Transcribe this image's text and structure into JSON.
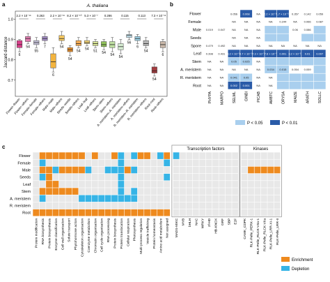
{
  "panel_a": {
    "letter": "a",
    "title": "A. thaliana",
    "ylabel": "Jaccard distance",
    "yticks": [
      "1.0",
      "0.9",
      "0.8",
      "0.7"
    ],
    "xlabels": [
      "Flower–flower",
      "Flower–others",
      "Female–female",
      "Female–others",
      "Male–male",
      "Male–others",
      "Seeds–seeds",
      "Seeds–others",
      "Leaf–leaf",
      "Leaf–others",
      "Stem–stem",
      "Stem–others",
      "A. meristem–A. meristem",
      "A. meristem–others",
      "R. meristem–R. meristem",
      "R. meristem–others",
      "Root–root",
      "Root–others"
    ],
    "pvalues": [
      "2.2 × 10⁻¹⁶",
      "0.263",
      "2.2 × 10⁻¹⁶",
      "8.2 × 10⁻¹⁰",
      "5.3 × 10⁻⁷",
      "0.286",
      "0.115",
      "0.113",
      "7.3 × 10⁻¹⁵"
    ],
    "ns": [
      "6",
      "54",
      "55",
      "7",
      "6",
      "54",
      "54",
      "54",
      "54",
      "51",
      "54",
      "54",
      "54",
      "56",
      "6",
      "54",
      "54",
      "6"
    ]
  },
  "chart_data": {
    "type": "box",
    "title": "A. thaliana",
    "ylabel": "Jaccard distance",
    "ylim": [
      0.62,
      1.04
    ],
    "categories": [
      "Flower–flower",
      "Flower–others",
      "Female–female",
      "Female–others",
      "Male–male",
      "Male–others",
      "Seeds–seeds",
      "Seeds–others",
      "Leaf–leaf",
      "Leaf–others",
      "Stem–stem",
      "Stem–others",
      "A. meristem–A. meristem",
      "A. meristem–others",
      "R. meristem–R. meristem",
      "R. meristem–others",
      "Root–root",
      "Root–others"
    ],
    "boxes": [
      {
        "min": 0.84,
        "q1": 0.86,
        "median": 0.875,
        "q3": 0.895,
        "max": 0.9,
        "color": "#d9418b"
      },
      {
        "min": 0.88,
        "q1": 0.89,
        "median": 0.905,
        "q3": 0.915,
        "max": 0.93,
        "color": "#e57fb4"
      },
      {
        "min": 0.86,
        "q1": 0.875,
        "median": 0.885,
        "q3": 0.895,
        "max": 0.91,
        "color": "#c7c3db"
      },
      {
        "min": 0.88,
        "q1": 0.895,
        "median": 0.905,
        "q3": 0.915,
        "max": 0.93,
        "color": "#a48dc6"
      },
      {
        "min": 0.74,
        "q1": 0.76,
        "median": 0.79,
        "q3": 0.83,
        "max": 0.86,
        "color": "#f3b43f"
      },
      {
        "min": 0.88,
        "q1": 0.895,
        "median": 0.905,
        "q3": 0.92,
        "max": 0.94,
        "color": "#f7c95f"
      },
      {
        "min": 0.82,
        "q1": 0.84,
        "median": 0.85,
        "q3": 0.86,
        "max": 0.87,
        "color": "#e58d2a"
      },
      {
        "min": 0.86,
        "q1": 0.87,
        "median": 0.88,
        "q3": 0.895,
        "max": 0.91,
        "color": "#f3ab55"
      },
      {
        "min": 0.87,
        "q1": 0.88,
        "median": 0.885,
        "q3": 0.895,
        "max": 0.91,
        "color": "#f7d778"
      },
      {
        "min": 0.86,
        "q1": 0.87,
        "median": 0.88,
        "q3": 0.89,
        "max": 0.9,
        "color": "#d7e395"
      },
      {
        "min": 0.85,
        "q1": 0.865,
        "median": 0.875,
        "q3": 0.89,
        "max": 0.9,
        "color": "#91c25a"
      },
      {
        "min": 0.84,
        "q1": 0.86,
        "median": 0.875,
        "q3": 0.89,
        "max": 0.91,
        "color": "#bfe0a3"
      },
      {
        "min": 0.83,
        "q1": 0.85,
        "median": 0.865,
        "q3": 0.88,
        "max": 0.9,
        "color": "#d6ecd2"
      },
      {
        "min": 0.9,
        "q1": 0.91,
        "median": 0.92,
        "q3": 0.925,
        "max": 0.94,
        "color": "#c8e6f2"
      },
      {
        "min": 0.88,
        "q1": 0.895,
        "median": 0.905,
        "q3": 0.915,
        "max": 0.925,
        "color": "#9fd2e6"
      },
      {
        "min": 0.86,
        "q1": 0.87,
        "median": 0.88,
        "q3": 0.895,
        "max": 0.91,
        "color": "#b5b5b5"
      },
      {
        "min": 0.72,
        "q1": 0.735,
        "median": 0.745,
        "q3": 0.765,
        "max": 0.78,
        "color": "#a23b3f"
      },
      {
        "min": 0.84,
        "q1": 0.86,
        "median": 0.875,
        "q3": 0.89,
        "max": 0.9,
        "color": "#c9b8a9"
      }
    ]
  },
  "panel_b": {
    "letter": "b",
    "rows": [
      "Flower",
      "Female",
      "Male",
      "Seeds",
      "Spore",
      "Leaf",
      "Stem",
      "A. meristem",
      "R. meristem",
      "Root"
    ],
    "cols": [
      "PHYPA",
      "MARPO",
      "SELML",
      "GINBI",
      "PICAB",
      "AMBTC",
      "ORYSA",
      "MAIZE",
      "ARATH",
      "SOLLC"
    ],
    "cells": [
      [
        "",
        "",
        "0.056",
        "0.008",
        "NA",
        "2.2 × 10⁻¹⁶",
        "1.7 × 10⁻¹⁶",
        "0.357",
        "0.142",
        "0.059"
      ],
      [
        "",
        "",
        "NA",
        "NA",
        "NA",
        "NA",
        "0.244",
        "NA",
        "0.066",
        "0.087"
      ],
      [
        "0.019",
        "0.047",
        "NA",
        "NA",
        "NA",
        "",
        "",
        "0.06",
        "0.086",
        ""
      ],
      [
        "",
        "",
        "NA",
        "NA",
        "NA",
        "",
        "",
        "",
        "",
        ""
      ],
      [
        "0.479",
        "0.492",
        "NA",
        "NA",
        "NA",
        "NA",
        "NA",
        "NA",
        "NA",
        "NA"
      ],
      [
        "0.398",
        "0.431",
        "8.2 × 10⁻¹⁰",
        "4.7 × 10⁻¹²",
        "7.3 × 10⁻⁷",
        "7.6 × 10⁻⁹",
        "0.001",
        "3.2 × 10⁻¹⁰",
        "0.01",
        "0.007"
      ],
      [
        "NA",
        "NA",
        "0.05",
        "0.025",
        "NA",
        "",
        "",
        "",
        "",
        ""
      ],
      [
        "NA",
        "NA",
        "NA",
        "NA",
        "NA",
        "0.034",
        "0.015",
        "0.054",
        "0.059",
        ""
      ],
      [
        "NA",
        "NA",
        "0.041",
        "0.05",
        "NA",
        "NA",
        "",
        "",
        "",
        ""
      ],
      [
        "NA",
        "NA",
        "0.002",
        "0.001",
        "NA",
        "NA",
        "",
        "",
        "",
        ""
      ]
    ],
    "levels": [
      [
        0,
        0,
        0,
        2,
        0,
        2,
        2,
        0,
        0,
        0
      ],
      [
        0,
        0,
        0,
        0,
        0,
        0,
        0,
        0,
        0,
        0
      ],
      [
        0,
        0,
        0,
        0,
        0,
        1,
        1,
        0,
        0,
        1
      ],
      [
        0,
        0,
        0,
        0,
        0,
        1,
        1,
        0,
        1,
        1
      ],
      [
        0,
        0,
        0,
        0,
        0,
        0,
        0,
        0,
        0,
        0
      ],
      [
        0,
        0,
        2,
        2,
        2,
        2,
        2,
        2,
        2,
        2
      ],
      [
        0,
        0,
        1,
        1,
        0,
        1,
        1,
        1,
        1,
        1
      ],
      [
        0,
        0,
        0,
        0,
        0,
        1,
        1,
        0,
        0,
        1
      ],
      [
        0,
        0,
        1,
        1,
        0,
        0,
        1,
        1,
        1,
        1
      ],
      [
        0,
        0,
        2,
        2,
        0,
        0,
        1,
        1,
        1,
        1
      ]
    ],
    "legend": [
      {
        "label": "P < 0.05",
        "color": "#a9cfee"
      },
      {
        "label": "P < 0.01",
        "color": "#2a5ba8"
      }
    ]
  },
  "panel_c": {
    "letter": "c",
    "rows": [
      "Flower",
      "Female",
      "Male",
      "Seeds",
      "Leaf",
      "Stem",
      "A. meristem",
      "R. meristem",
      "Root"
    ],
    "section_titles": [
      "Transcription factors",
      "Kinases"
    ],
    "cols1": [
      "Protein modification",
      "RNA biosynthesis",
      "Protein biosynthesis",
      "Enzyme classification",
      "Cell wall organisation",
      "Solute transport",
      "Phytohormone action",
      "Cytoskeleton organisation",
      "Coenzyme metabolism",
      "Chromatin organisation",
      "Cell cycle organisation",
      "RNA processing",
      "Protein biosynthesis",
      "Protein translocation",
      "Cellular respiration",
      "Photosynthesis",
      "Multi-process regulation",
      "Vesicle trafficking",
      "Protein homeostasis",
      "Amino acid metabolism",
      "Not assigned"
    ],
    "cols2": [
      "MADS-MIKC",
      "MYB",
      "bHLH",
      "NAC",
      "WRKY",
      "zf-HD",
      "HB-KNOX",
      "GRF",
      "SBP",
      "E2F"
    ],
    "cols3": [
      "CAMK_CDPK",
      "RLK-Pelle_PERK-1",
      "RLK-Pelle_RLCK-VIIa-1",
      "RLK-Pelle_RLCK-VIIa",
      "RLK-Pelle_LRR-XI-1",
      "RLK-Pelle_LRR-II"
    ],
    "grid1": [
      [
        0,
        1,
        1,
        1,
        1,
        1,
        1,
        1,
        0,
        1,
        0,
        0,
        1,
        2,
        0,
        2,
        1,
        1,
        0,
        2,
        1
      ],
      [
        0,
        2,
        0,
        0,
        0,
        0,
        0,
        0,
        0,
        0,
        0,
        0,
        0,
        2,
        0,
        0,
        0,
        0,
        0,
        0,
        2
      ],
      [
        0,
        1,
        1,
        2,
        1,
        1,
        1,
        1,
        2,
        0,
        0,
        2,
        2,
        2,
        1,
        2,
        0,
        0,
        0,
        0,
        0
      ],
      [
        0,
        2,
        1,
        0,
        0,
        0,
        0,
        0,
        0,
        0,
        0,
        0,
        0,
        2,
        0,
        0,
        0,
        0,
        0,
        0,
        2
      ],
      [
        0,
        0,
        1,
        1,
        0,
        0,
        0,
        0,
        0,
        0,
        0,
        0,
        0,
        2,
        0,
        0,
        0,
        0,
        0,
        0,
        0
      ],
      [
        0,
        1,
        1,
        1,
        1,
        1,
        1,
        0,
        0,
        0,
        0,
        0,
        0,
        2,
        0,
        2,
        0,
        0,
        0,
        0,
        0
      ],
      [
        0,
        2,
        0,
        0,
        0,
        0,
        0,
        2,
        2,
        2,
        2,
        2,
        2,
        2,
        2,
        2,
        0,
        0,
        0,
        0,
        0
      ],
      [
        0,
        0,
        0,
        0,
        0,
        0,
        0,
        0,
        0,
        0,
        0,
        0,
        0,
        0,
        0,
        0,
        0,
        0,
        0,
        0,
        0
      ],
      [
        1,
        1,
        1,
        1,
        1,
        1,
        1,
        1,
        1,
        1,
        1,
        1,
        1,
        1,
        1,
        1,
        1,
        1,
        1,
        1,
        1
      ]
    ],
    "grid2": [
      [
        2,
        0,
        0,
        0,
        0,
        0,
        0,
        0,
        0,
        0
      ],
      [
        0,
        0,
        0,
        0,
        0,
        0,
        0,
        0,
        0,
        0
      ],
      [
        0,
        0,
        0,
        0,
        0,
        0,
        0,
        0,
        0,
        0
      ],
      [
        0,
        0,
        0,
        0,
        0,
        0,
        0,
        0,
        0,
        0
      ],
      [
        0,
        0,
        0,
        0,
        0,
        0,
        0,
        0,
        0,
        0
      ],
      [
        0,
        0,
        0,
        0,
        0,
        0,
        0,
        0,
        0,
        0
      ],
      [
        0,
        0,
        0,
        0,
        0,
        0,
        0,
        0,
        0,
        0
      ],
      [
        0,
        0,
        0,
        0,
        0,
        0,
        0,
        0,
        0,
        0
      ],
      [
        0,
        0,
        0,
        0,
        0,
        0,
        0,
        0,
        0,
        0
      ]
    ],
    "grid3": [
      [
        0,
        0,
        0,
        0,
        0,
        0
      ],
      [
        0,
        0,
        0,
        0,
        0,
        0
      ],
      [
        0,
        1,
        1,
        1,
        1,
        1
      ],
      [
        0,
        0,
        0,
        0,
        0,
        0
      ],
      [
        0,
        0,
        0,
        0,
        0,
        0
      ],
      [
        0,
        0,
        0,
        0,
        0,
        0
      ],
      [
        0,
        0,
        0,
        0,
        0,
        0
      ],
      [
        0,
        0,
        0,
        0,
        0,
        0
      ],
      [
        0,
        0,
        0,
        0,
        0,
        0
      ]
    ],
    "legend": [
      {
        "label": "Enrichment",
        "color": "#ee8a1e"
      },
      {
        "label": "Depletion",
        "color": "#36b4e6"
      }
    ]
  },
  "colors": {
    "empty": "#e8e8e8",
    "enrich": "#ee8a1e",
    "deplete": "#36b4e6",
    "light_blue": "#a9cfee",
    "dark_blue": "#2a5ba8"
  }
}
